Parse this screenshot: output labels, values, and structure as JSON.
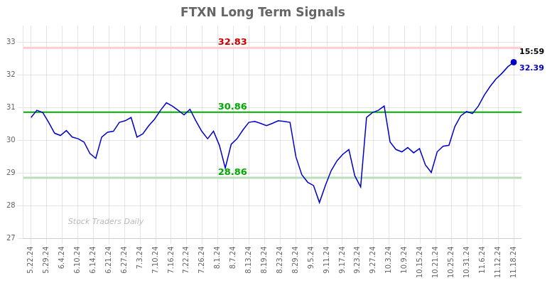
{
  "chart_data": {
    "type": "line",
    "title": "FTXN Long Term Signals",
    "x": [
      0,
      0.378,
      0.7561,
      1.1341,
      1.5122,
      1.8902,
      2.2683,
      2.6463,
      3.0244,
      3.4024,
      3.7805,
      4.1585,
      4.5366,
      4.9146,
      5.2927,
      5.6707,
      6.0488,
      6.4268,
      6.8049,
      7.1829,
      7.561,
      7.939,
      8.3171,
      8.6951,
      9.0732,
      9.4512,
      9.8293,
      10.2073,
      10.5854,
      10.9634,
      11.3415,
      11.7195,
      12.0976,
      12.4756,
      12.8537,
      13.2317,
      13.6098,
      13.9878,
      14.3659,
      14.7439,
      15.122,
      15.5,
      15.878,
      16.2561,
      16.6341,
      17.0122,
      17.3902,
      17.7683,
      18.1463,
      18.5244,
      18.9024,
      19.2805,
      19.6585,
      20.0366,
      20.4146,
      20.7927,
      21.1707,
      21.5488,
      21.9268,
      22.3049,
      22.6829,
      23.061,
      23.439,
      23.8171,
      24.1951,
      24.5732,
      24.9512,
      25.3293,
      25.7073,
      26.0854,
      26.4634,
      26.8415,
      27.2195,
      27.5976,
      27.9756,
      28.3537,
      28.7317,
      29.1098,
      29.4878,
      29.8659,
      30.2439,
      30.622,
      31
    ],
    "values": [
      30.7,
      30.92,
      30.85,
      30.55,
      30.22,
      30.15,
      30.3,
      30.1,
      30.05,
      29.95,
      29.6,
      29.45,
      30.1,
      30.25,
      30.28,
      30.55,
      30.6,
      30.7,
      30.1,
      30.2,
      30.45,
      30.65,
      30.92,
      31.15,
      31.05,
      30.92,
      30.78,
      30.95,
      30.6,
      30.28,
      30.05,
      30.28,
      29.85,
      29.15,
      29.88,
      30.05,
      30.32,
      30.55,
      30.58,
      30.52,
      30.45,
      30.52,
      30.6,
      30.58,
      30.55,
      29.5,
      28.95,
      28.72,
      28.62,
      28.1,
      28.62,
      29.08,
      29.38,
      29.58,
      29.72,
      28.92,
      28.58,
      30.7,
      30.85,
      30.92,
      31.05,
      29.95,
      29.72,
      29.65,
      29.78,
      29.62,
      29.75,
      29.25,
      29.02,
      29.65,
      29.82,
      29.85,
      30.42,
      30.75,
      30.88,
      30.82,
      31.05,
      31.38,
      31.65,
      31.88,
      32.05,
      32.25,
      32.39
    ],
    "color": "#0000cc",
    "xlim": [
      -0.5,
      31.5
    ],
    "xticks": [
      {
        "value": 0,
        "label": "5.22.24"
      },
      {
        "value": 1,
        "label": "5.29.24"
      },
      {
        "value": 2,
        "label": "6.4.24"
      },
      {
        "value": 3,
        "label": "6.10.24"
      },
      {
        "value": 4,
        "label": "6.14.24"
      },
      {
        "value": 5,
        "label": "6.21.24"
      },
      {
        "value": 6,
        "label": "6.27.24"
      },
      {
        "value": 7,
        "label": "7.3.24"
      },
      {
        "value": 8,
        "label": "7.10.24"
      },
      {
        "value": 9,
        "label": "7.16.24"
      },
      {
        "value": 10,
        "label": "7.22.24"
      },
      {
        "value": 11,
        "label": "7.26.24"
      },
      {
        "value": 12,
        "label": "8.1.24"
      },
      {
        "value": 13,
        "label": "8.7.24"
      },
      {
        "value": 14,
        "label": "8.13.24"
      },
      {
        "value": 15,
        "label": "8.19.24"
      },
      {
        "value": 16,
        "label": "8.23.24"
      },
      {
        "value": 17,
        "label": "8.29.24"
      },
      {
        "value": 18,
        "label": "9.5.24"
      },
      {
        "value": 19,
        "label": "9.11.24"
      },
      {
        "value": 20,
        "label": "9.17.24"
      },
      {
        "value": 21,
        "label": "9.23.24"
      },
      {
        "value": 22,
        "label": "9.27.24"
      },
      {
        "value": 23,
        "label": "10.3.24"
      },
      {
        "value": 24,
        "label": "10.9.24"
      },
      {
        "value": 25,
        "label": "10.15.24"
      },
      {
        "value": 26,
        "label": "10.21.24"
      },
      {
        "value": 27,
        "label": "10.25.24"
      },
      {
        "value": 28,
        "label": "10.31.24"
      },
      {
        "value": 29,
        "label": "11.6.24"
      },
      {
        "value": 30,
        "label": "11.12.24"
      },
      {
        "value": 31,
        "label": "11.18.24"
      }
    ],
    "ylim": [
      27.0,
      33.5
    ],
    "yticks": [
      27,
      28,
      29,
      30,
      31,
      32,
      33
    ],
    "grid": true,
    "bands": [
      {
        "value": 32.83,
        "label": "32.83",
        "color": "#ffcccc",
        "label_color": "#cc0000"
      },
      {
        "value": 28.86,
        "label": "28.86",
        "color": "#bbddbb",
        "label_color": "#00aa00"
      },
      {
        "value": 30.86,
        "label": "30.86",
        "color": "#00aa00",
        "label_color": "#00aa00"
      }
    ],
    "last_point": {
      "x": 31,
      "value": 32.39,
      "label": "32.39",
      "time": "15:59",
      "color": "#0000cc"
    },
    "watermark": "Stock Traders Daily"
  }
}
